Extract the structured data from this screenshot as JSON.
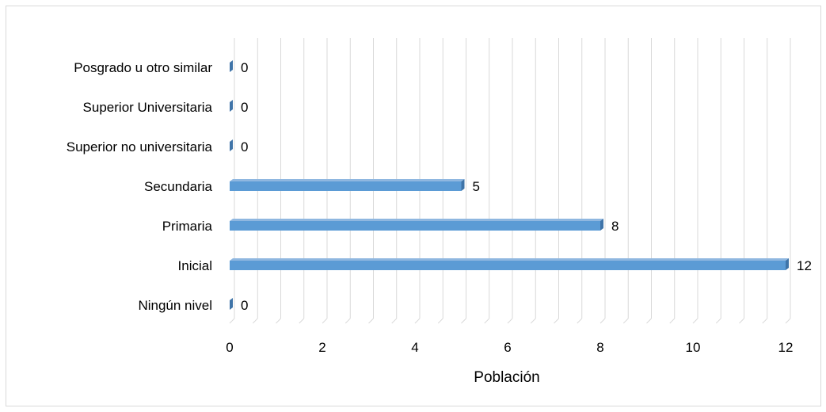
{
  "chart_data": {
    "type": "bar",
    "orientation": "horizontal",
    "categories": [
      "Posgrado u otro similar",
      "Superior Universitaria",
      "Superior no universitaria",
      "Secundaria",
      "Primaria",
      "Inicial",
      "Ningún nivel"
    ],
    "values": [
      0,
      0,
      0,
      5,
      8,
      12,
      0
    ],
    "data_labels": [
      "0",
      "0",
      "0",
      "5",
      "8",
      "12",
      "0"
    ],
    "xlabel": "Población",
    "ylabel": "",
    "xlim": [
      0,
      12
    ],
    "xticks": [
      "0",
      "2",
      "4",
      "6",
      "8",
      "10",
      "12"
    ],
    "grid": true,
    "legend": "none",
    "colors": {
      "bar": "#5b9bd5",
      "bar_edge": "#3f74a8",
      "grid": "#d9d9d9"
    }
  }
}
